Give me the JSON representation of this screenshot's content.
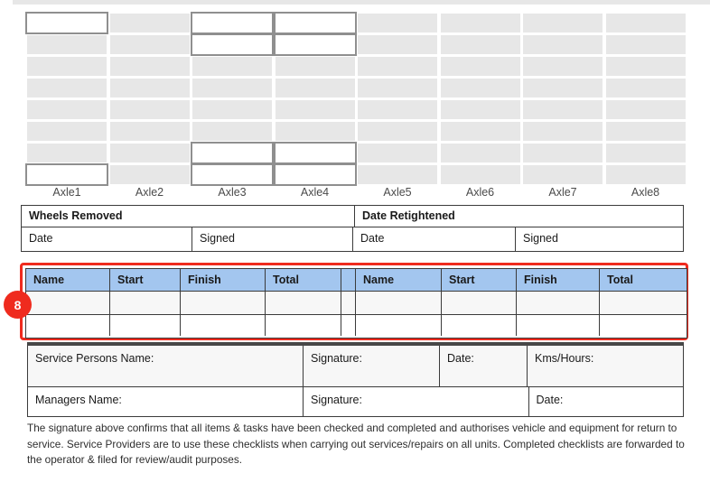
{
  "colors": {
    "accent_blue": "#a3c6ef",
    "highlight_red": "#ef2b1e",
    "cell_gray": "#e7e7e7",
    "border_dark": "#3b3b3b",
    "input_border_gray": "#8f8f8f"
  },
  "axle_grid": {
    "rows": 8,
    "cols": 8,
    "labels": [
      "Axle1",
      "Axle2",
      "Axle3",
      "Axle4",
      "Axle5",
      "Axle6",
      "Axle7",
      "Axle8"
    ],
    "input_cells": [
      [
        1,
        1
      ],
      [
        3,
        1
      ],
      [
        4,
        1
      ],
      [
        3,
        2
      ],
      [
        4,
        2
      ],
      [
        3,
        7
      ],
      [
        4,
        7
      ],
      [
        1,
        8
      ],
      [
        3,
        8
      ],
      [
        4,
        8
      ]
    ]
  },
  "wheels_table": {
    "headers": [
      "Wheels Removed",
      "Date Retightened"
    ],
    "cells": [
      "Date",
      "Signed",
      "Date",
      "Signed"
    ]
  },
  "crew_table": {
    "headers": [
      "Name",
      "Start",
      "Finish",
      "Total"
    ],
    "data_rows": 2
  },
  "annotation": {
    "number": "8"
  },
  "signature_table": {
    "row1": [
      "Service Persons Name:",
      "Signature:",
      "Date:",
      "Kms/Hours:"
    ],
    "row2": [
      "Managers Name:",
      "Signature:",
      "Date:"
    ]
  },
  "footer": {
    "text": "The signature above confirms that all items & tasks have been checked and completed and authorises vehicle and equipment for return to service. Service Providers are to use these checklists when carrying out services/repairs on all units. Completed checklists are forwarded to the operator & filed for review/audit purposes."
  }
}
